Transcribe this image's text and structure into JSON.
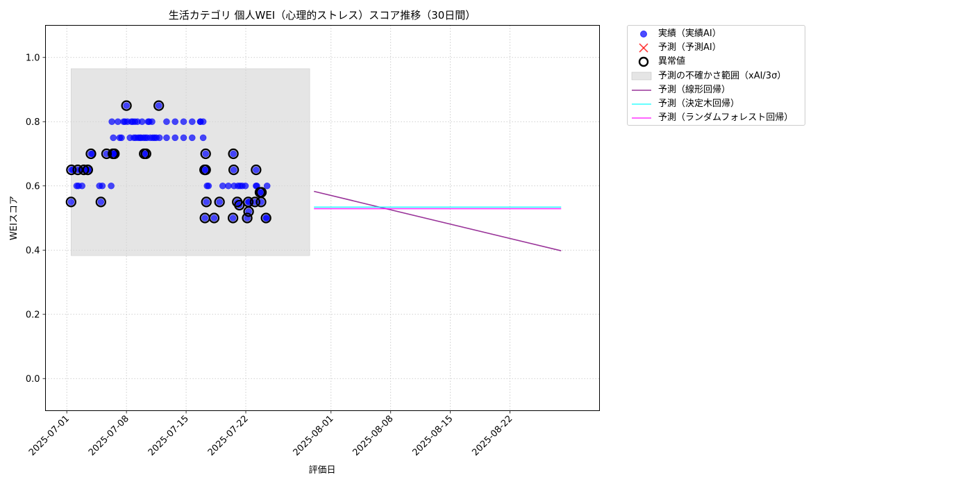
{
  "chart_data": {
    "type": "scatter",
    "title": "生活カテゴリ 個人WEI（心理的ストレス）スコア推移（30日間）",
    "xlabel": "評価日",
    "ylabel": "WEIスコア",
    "xlim": [
      "2025-06-28T12:00",
      "2025-09-01T12:00"
    ],
    "ylim": [
      -0.1,
      1.1
    ],
    "x_ticks": [
      "2025-07-01",
      "2025-07-08",
      "2025-07-15",
      "2025-07-22",
      "2025-08-01",
      "2025-08-08",
      "2025-08-15",
      "2025-08-22"
    ],
    "y_ticks": [
      0.0,
      0.2,
      0.4,
      0.6,
      0.8,
      1.0
    ],
    "y_tick_labels": [
      "0.0",
      "0.2",
      "0.4",
      "0.6",
      "0.8",
      "1.0"
    ],
    "grid": true,
    "legend_position": "outside-top-right",
    "uncertainty_band": {
      "x_start": "2025-07-01T12:00",
      "x_end": "2025-07-29T12:00",
      "y_low": 0.383,
      "y_high": 0.965,
      "color": "#d3d3d3"
    },
    "series": [
      {
        "name": "実績（実績AI）",
        "kind": "scatter",
        "color": "#0000ff",
        "points": [
          [
            "2025-07-01T12:00",
            0.55
          ],
          [
            "2025-07-01T13:00",
            0.65
          ],
          [
            "2025-07-01T17:00",
            0.65
          ],
          [
            "2025-07-02T04:00",
            0.6
          ],
          [
            "2025-07-02T07:00",
            0.65
          ],
          [
            "2025-07-02T09:00",
            0.6
          ],
          [
            "2025-07-02T15:00",
            0.65
          ],
          [
            "2025-07-02T19:00",
            0.6
          ],
          [
            "2025-07-03T00:00",
            0.65
          ],
          [
            "2025-07-03T05:00",
            0.65
          ],
          [
            "2025-07-03T11:00",
            0.65
          ],
          [
            "2025-07-03T16:00",
            0.65
          ],
          [
            "2025-07-03T20:00",
            0.7
          ],
          [
            "2025-07-04T00:00",
            0.7
          ],
          [
            "2025-07-04T20:00",
            0.6
          ],
          [
            "2025-07-05T00:00",
            0.55
          ],
          [
            "2025-07-05T04:00",
            0.6
          ],
          [
            "2025-07-05T16:00",
            0.7
          ],
          [
            "2025-07-06T05:00",
            0.6
          ],
          [
            "2025-07-06T07:00",
            0.8
          ],
          [
            "2025-07-06T10:00",
            0.7
          ],
          [
            "2025-07-06T11:00",
            0.75
          ],
          [
            "2025-07-06T12:00",
            0.7
          ],
          [
            "2025-07-06T14:00",
            0.7
          ],
          [
            "2025-07-06T18:00",
            0.7
          ],
          [
            "2025-07-07T00:00",
            0.8
          ],
          [
            "2025-07-07T05:00",
            0.75
          ],
          [
            "2025-07-07T10:00",
            0.75
          ],
          [
            "2025-07-07T16:00",
            0.8
          ],
          [
            "2025-07-07T20:00",
            0.8
          ],
          [
            "2025-07-08T00:00",
            0.85
          ],
          [
            "2025-07-08T03:00",
            0.8
          ],
          [
            "2025-07-08T10:00",
            0.75
          ],
          [
            "2025-07-08T14:00",
            0.8
          ],
          [
            "2025-07-08T18:00",
            0.8
          ],
          [
            "2025-07-08T21:00",
            0.75
          ],
          [
            "2025-07-09T00:00",
            0.8
          ],
          [
            "2025-07-09T02:00",
            0.75
          ],
          [
            "2025-07-09T07:00",
            0.8
          ],
          [
            "2025-07-09T09:00",
            0.75
          ],
          [
            "2025-07-09T14:00",
            0.75
          ],
          [
            "2025-07-09T17:00",
            0.75
          ],
          [
            "2025-07-09T20:00",
            0.8
          ],
          [
            "2025-07-10T00:00",
            0.75
          ],
          [
            "2025-07-10T02:00",
            0.7
          ],
          [
            "2025-07-10T05:00",
            0.75
          ],
          [
            "2025-07-10T07:00",
            0.7
          ],
          [
            "2025-07-10T10:00",
            0.75
          ],
          [
            "2025-07-10T13:00",
            0.8
          ],
          [
            "2025-07-10T16:00",
            0.8
          ],
          [
            "2025-07-10T19:00",
            0.75
          ],
          [
            "2025-07-11T00:00",
            0.8
          ],
          [
            "2025-07-11T02:00",
            0.75
          ],
          [
            "2025-07-11T07:00",
            0.75
          ],
          [
            "2025-07-11T12:00",
            0.75
          ],
          [
            "2025-07-11T19:00",
            0.85
          ],
          [
            "2025-07-11T21:00",
            0.75
          ],
          [
            "2025-07-12T17:00",
            0.8
          ],
          [
            "2025-07-12T17:01",
            0.75
          ],
          [
            "2025-07-13T17:00",
            0.8
          ],
          [
            "2025-07-13T17:01",
            0.75
          ],
          [
            "2025-07-14T17:00",
            0.8
          ],
          [
            "2025-07-14T17:01",
            0.75
          ],
          [
            "2025-07-15T17:00",
            0.8
          ],
          [
            "2025-07-15T17:01",
            0.75
          ],
          [
            "2025-07-16T16:00",
            0.8
          ],
          [
            "2025-07-16T16:01",
            0.8
          ],
          [
            "2025-07-17T00:00",
            0.8
          ],
          [
            "2025-07-17T00:01",
            0.75
          ],
          [
            "2025-07-17T04:00",
            0.65
          ],
          [
            "2025-07-17T07:00",
            0.7
          ],
          [
            "2025-07-17T07:01",
            0.65
          ],
          [
            "2025-07-17T09:00",
            0.55
          ],
          [
            "2025-07-17T11:00",
            0.6
          ],
          [
            "2025-07-17T15:00",
            0.6
          ],
          [
            "2025-07-17T05:00",
            0.5
          ],
          [
            "2025-07-18T07:00",
            0.5
          ],
          [
            "2025-07-18T22:00",
            0.55
          ],
          [
            "2025-07-19T07:00",
            0.6
          ],
          [
            "2025-07-19T23:00",
            0.6
          ],
          [
            "2025-07-20T12:00",
            0.5
          ],
          [
            "2025-07-20T13:00",
            0.7
          ],
          [
            "2025-07-20T14:00",
            0.65
          ],
          [
            "2025-07-20T15:00",
            0.6
          ],
          [
            "2025-07-21T00:00",
            0.55
          ],
          [
            "2025-07-21T02:00",
            0.6
          ],
          [
            "2025-07-21T06:00",
            0.54
          ],
          [
            "2025-07-21T08:00",
            0.6
          ],
          [
            "2025-07-21T14:00",
            0.6
          ],
          [
            "2025-07-21T23:00",
            0.6
          ],
          [
            "2025-07-22T07:00",
            0.55
          ],
          [
            "2025-07-22T08:00",
            0.52
          ],
          [
            "2025-07-22T09:00",
            0.55
          ],
          [
            "2025-07-22T04:00",
            0.5
          ],
          [
            "2025-07-23T02:00",
            0.55
          ],
          [
            "2025-07-23T05:00",
            0.6
          ],
          [
            "2025-07-23T05:01",
            0.65
          ],
          [
            "2025-07-23T07:00",
            0.6
          ],
          [
            "2025-07-23T16:00",
            0.58
          ],
          [
            "2025-07-23T19:00",
            0.55
          ],
          [
            "2025-07-23T20:00",
            0.58
          ],
          [
            "2025-07-24T09:00",
            0.5
          ],
          [
            "2025-07-24T10:00",
            0.5
          ],
          [
            "2025-07-24T12:00",
            0.6
          ]
        ]
      },
      {
        "name": "予測（予測AI）",
        "kind": "scatter-x",
        "color": "#ff0000",
        "points": []
      },
      {
        "name": "異常値",
        "kind": "outlier-ring",
        "color": "#000000",
        "points": [
          [
            "2025-07-01T12:00",
            0.55
          ],
          [
            "2025-07-01T13:00",
            0.65
          ],
          [
            "2025-07-02T07:00",
            0.65
          ],
          [
            "2025-07-03T00:00",
            0.65
          ],
          [
            "2025-07-03T11:00",
            0.65
          ],
          [
            "2025-07-03T20:00",
            0.7
          ],
          [
            "2025-07-05T00:00",
            0.55
          ],
          [
            "2025-07-05T16:00",
            0.7
          ],
          [
            "2025-07-06T10:00",
            0.7
          ],
          [
            "2025-07-06T14:00",
            0.7
          ],
          [
            "2025-07-08T00:00",
            0.85
          ],
          [
            "2025-07-10T02:00",
            0.7
          ],
          [
            "2025-07-10T07:00",
            0.7
          ],
          [
            "2025-07-11T19:00",
            0.85
          ],
          [
            "2025-07-17T04:00",
            0.65
          ],
          [
            "2025-07-17T07:00",
            0.7
          ],
          [
            "2025-07-17T07:01",
            0.65
          ],
          [
            "2025-07-17T09:00",
            0.55
          ],
          [
            "2025-07-17T05:00",
            0.5
          ],
          [
            "2025-07-18T07:00",
            0.5
          ],
          [
            "2025-07-18T22:00",
            0.55
          ],
          [
            "2025-07-20T12:00",
            0.5
          ],
          [
            "2025-07-20T13:00",
            0.7
          ],
          [
            "2025-07-20T14:00",
            0.65
          ],
          [
            "2025-07-21T00:00",
            0.55
          ],
          [
            "2025-07-21T06:00",
            0.54
          ],
          [
            "2025-07-22T04:00",
            0.5
          ],
          [
            "2025-07-22T07:00",
            0.55
          ],
          [
            "2025-07-22T08:00",
            0.52
          ],
          [
            "2025-07-23T02:00",
            0.55
          ],
          [
            "2025-07-23T05:01",
            0.65
          ],
          [
            "2025-07-23T16:00",
            0.58
          ],
          [
            "2025-07-23T19:00",
            0.55
          ],
          [
            "2025-07-23T20:00",
            0.58
          ],
          [
            "2025-07-24T09:00",
            0.5
          ]
        ]
      },
      {
        "name": "予測の不確かさ範囲（xAI/3σ）",
        "kind": "band",
        "color": "#d3d3d3"
      },
      {
        "name": "予測（線形回帰）",
        "kind": "line",
        "color": "#800080",
        "points": [
          [
            "2025-07-30T00:00",
            0.583
          ],
          [
            "2025-08-28T00:00",
            0.398
          ]
        ]
      },
      {
        "name": "予測（決定木回帰）",
        "kind": "line",
        "color": "#00ffff",
        "points": [
          [
            "2025-07-30T00:00",
            0.534
          ],
          [
            "2025-08-28T00:00",
            0.534
          ]
        ]
      },
      {
        "name": "予測（ランダムフォレスト回帰）",
        "kind": "line",
        "color": "#ff00ff",
        "points": [
          [
            "2025-07-30T00:00",
            0.529
          ],
          [
            "2025-08-28T00:00",
            0.529
          ]
        ]
      }
    ]
  }
}
